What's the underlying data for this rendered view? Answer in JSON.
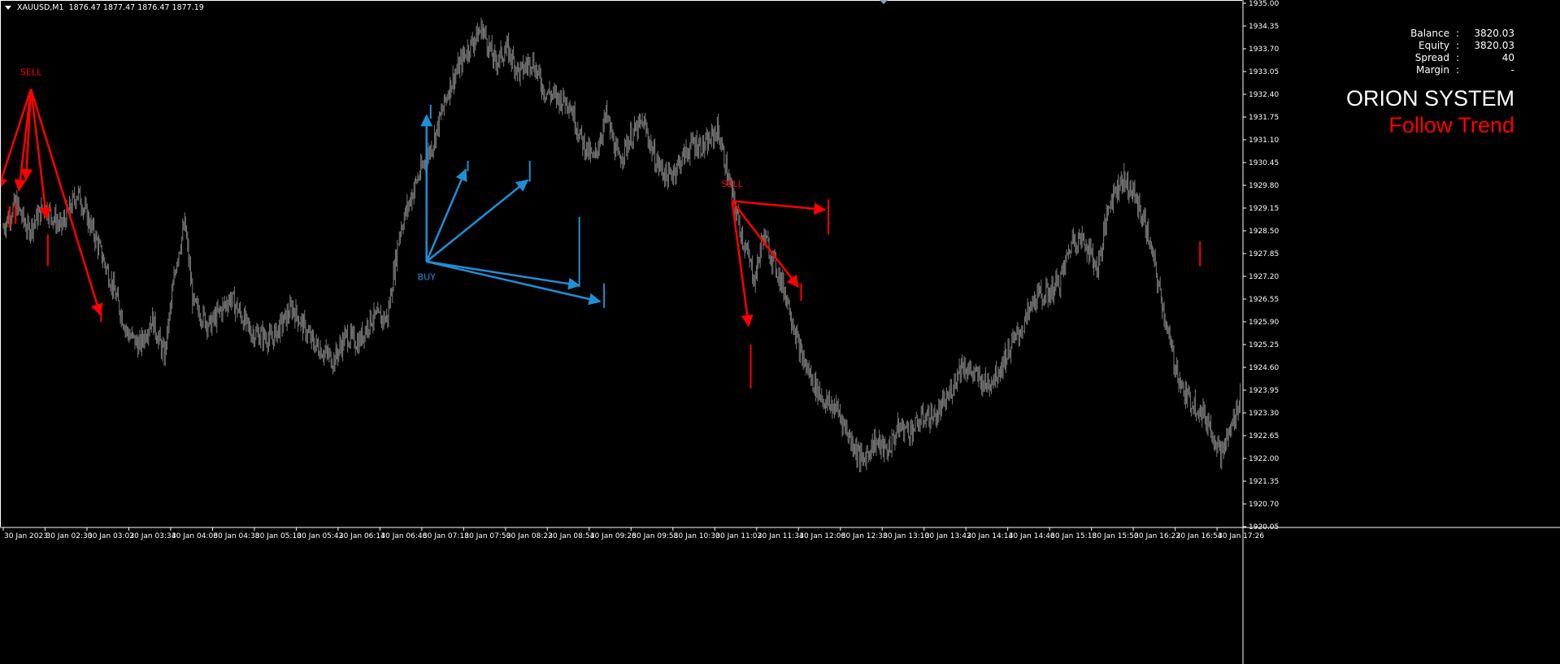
{
  "window": {
    "symbol": "XAUUSD,M1",
    "ohlc": "1876.47 1877.47 1876.47 1877.19"
  },
  "info_panel": [
    {
      "label": "Balance",
      "sep": ":",
      "value": "3820.03"
    },
    {
      "label": "Equity",
      "sep": ":",
      "value": "3820.03"
    },
    {
      "label": "Spread",
      "sep": ":",
      "value": "40"
    },
    {
      "label": "Margin",
      "sep": ":",
      "value": "-"
    }
  ],
  "brand": {
    "name": "ORION SYSTEM",
    "tagline": "Follow Trend"
  },
  "colors": {
    "background": "#000000",
    "candles": "#7a7a7a",
    "sell": "#ff0000",
    "buy": "#1e90d6",
    "axis": "#ffffff"
  },
  "chart_data": {
    "type": "line",
    "style": "candlestick-bars",
    "ylim": [
      1920.05,
      1935.0
    ],
    "y_ticks": [
      "1935.00",
      "1934.35",
      "1933.70",
      "1933.05",
      "1932.40",
      "1931.75",
      "1931.10",
      "1930.45",
      "1929.80",
      "1929.15",
      "1928.50",
      "1927.85",
      "1927.20",
      "1926.55",
      "1925.90",
      "1925.25",
      "1924.60",
      "1923.95",
      "1923.30",
      "1922.65",
      "1922.00",
      "1921.35",
      "1920.70",
      "1920.05"
    ],
    "x_ticks": [
      "30 Jan 2023",
      "30 Jan 02:30",
      "30 Jan 03:02",
      "30 Jan 03:34",
      "30 Jan 04:06",
      "30 Jan 04:38",
      "30 Jan 05:10",
      "30 Jan 05:42",
      "30 Jan 06:14",
      "30 Jan 06:46",
      "30 Jan 07:18",
      "30 Jan 07:50",
      "30 Jan 08:22",
      "30 Jan 08:54",
      "30 Jan 09:26",
      "30 Jan 09:58",
      "30 Jan 10:30",
      "30 Jan 11:02",
      "30 Jan 11:34",
      "30 Jan 12:06",
      "30 Jan 12:38",
      "30 Jan 13:10",
      "30 Jan 13:42",
      "30 Jan 14:14",
      "30 Jan 14:46",
      "30 Jan 15:18",
      "30 Jan 15:50",
      "30 Jan 16:22",
      "30 Jan 16:54",
      "30 Jan 17:26"
    ],
    "price_path": [
      [
        0,
        1928.6
      ],
      [
        0.3,
        1929.3
      ],
      [
        0.6,
        1928.5
      ],
      [
        1.0,
        1929.2
      ],
      [
        1.4,
        1928.6
      ],
      [
        1.8,
        1929.6
      ],
      [
        2.2,
        1928.4
      ],
      [
        2.6,
        1927.1
      ],
      [
        3.0,
        1925.6
      ],
      [
        3.3,
        1925.2
      ],
      [
        3.6,
        1926.0
      ],
      [
        3.9,
        1924.9
      ],
      [
        4.2,
        1927.7
      ],
      [
        4.4,
        1928.7
      ],
      [
        4.6,
        1926.4
      ],
      [
        5.0,
        1925.8
      ],
      [
        5.5,
        1926.6
      ],
      [
        6.0,
        1925.6
      ],
      [
        6.5,
        1925.4
      ],
      [
        7.0,
        1926.3
      ],
      [
        7.5,
        1925.3
      ],
      [
        7.8,
        1925.0
      ],
      [
        8.0,
        1924.8
      ],
      [
        8.3,
        1925.5
      ],
      [
        8.6,
        1925.3
      ],
      [
        8.9,
        1926.0
      ],
      [
        9.3,
        1926.0
      ],
      [
        9.6,
        1928.5
      ],
      [
        10.0,
        1929.9
      ],
      [
        10.4,
        1931.0
      ],
      [
        10.8,
        1932.6
      ],
      [
        11.2,
        1933.6
      ],
      [
        11.6,
        1934.3
      ],
      [
        11.9,
        1933.3
      ],
      [
        12.2,
        1933.7
      ],
      [
        12.5,
        1933.0
      ],
      [
        12.8,
        1933.4
      ],
      [
        13.1,
        1932.5
      ],
      [
        13.4,
        1932.3
      ],
      [
        13.7,
        1932.2
      ],
      [
        14.0,
        1931.1
      ],
      [
        14.3,
        1930.5
      ],
      [
        14.6,
        1931.8
      ],
      [
        14.9,
        1930.5
      ],
      [
        15.2,
        1931.2
      ],
      [
        15.5,
        1931.6
      ],
      [
        15.8,
        1930.5
      ],
      [
        16.1,
        1930.0
      ],
      [
        16.4,
        1930.5
      ],
      [
        16.7,
        1931.0
      ],
      [
        17.0,
        1930.9
      ],
      [
        17.3,
        1931.4
      ],
      [
        17.6,
        1929.8
      ],
      [
        17.9,
        1928.3
      ],
      [
        18.2,
        1927.1
      ],
      [
        18.4,
        1928.4
      ],
      [
        18.7,
        1927.5
      ],
      [
        19.0,
        1926.5
      ],
      [
        19.3,
        1925.0
      ],
      [
        19.6,
        1924.2
      ],
      [
        19.9,
        1923.6
      ],
      [
        20.2,
        1923.4
      ],
      [
        20.5,
        1922.6
      ],
      [
        20.8,
        1921.9
      ],
      [
        21.1,
        1922.5
      ],
      [
        21.4,
        1922.2
      ],
      [
        21.7,
        1922.9
      ],
      [
        22.0,
        1922.8
      ],
      [
        22.3,
        1923.2
      ],
      [
        22.6,
        1923.2
      ],
      [
        22.9,
        1923.8
      ],
      [
        23.2,
        1924.7
      ],
      [
        23.5,
        1924.4
      ],
      [
        23.8,
        1924.1
      ],
      [
        24.1,
        1924.5
      ],
      [
        24.4,
        1925.2
      ],
      [
        24.7,
        1925.8
      ],
      [
        25.0,
        1926.6
      ],
      [
        25.3,
        1926.7
      ],
      [
        25.6,
        1927.1
      ],
      [
        25.9,
        1928.3
      ],
      [
        26.2,
        1928.2
      ],
      [
        26.5,
        1927.4
      ],
      [
        26.8,
        1929.4
      ],
      [
        27.1,
        1930.0
      ],
      [
        27.4,
        1929.5
      ],
      [
        27.7,
        1928.5
      ],
      [
        28.0,
        1926.8
      ],
      [
        28.3,
        1925.0
      ],
      [
        28.6,
        1923.8
      ],
      [
        28.9,
        1923.5
      ],
      [
        29.2,
        1923.0
      ],
      [
        29.5,
        1922.1
      ],
      [
        29.8,
        1923.1
      ],
      [
        30.0,
        1924.0
      ]
    ],
    "x_range": [
      0,
      30
    ],
    "signals": [
      {
        "type": "sell",
        "label": "SELL"
      },
      {
        "type": "buy",
        "label": "BUY"
      },
      {
        "type": "sell",
        "label": "SELL"
      }
    ]
  }
}
